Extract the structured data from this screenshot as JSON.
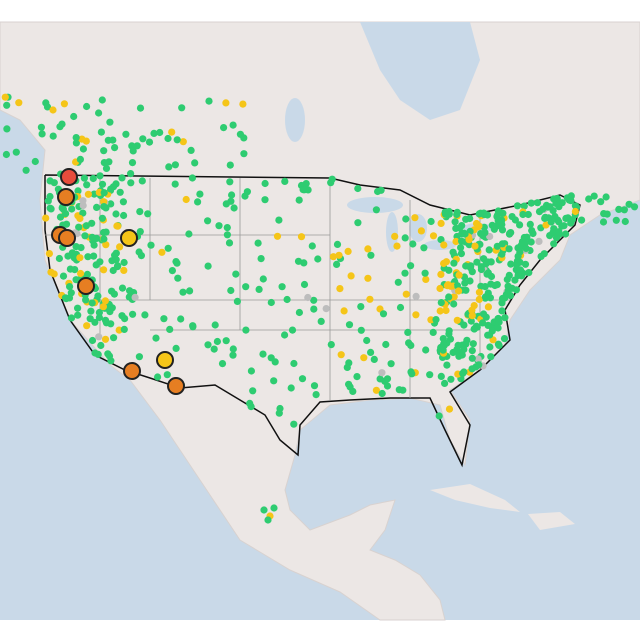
{
  "map": {
    "marker_colors": [
      "#2ecc71",
      "#f5c518",
      "#e67e22",
      "#e74c3c",
      "#bdbdbd"
    ]
  }
}
